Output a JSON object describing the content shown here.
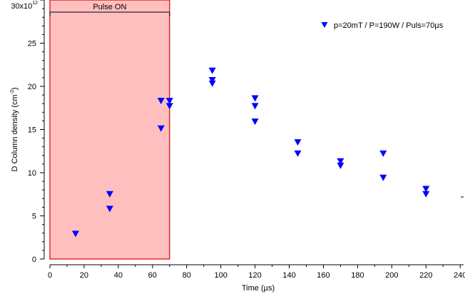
{
  "chart_data": {
    "type": "scatter",
    "xlabel": "Time (µs)",
    "ylabel": {
      "main": "D Column density (cm",
      "sup": "-2",
      "close": ")"
    },
    "xlim": [
      0,
      242
    ],
    "ylim": [
      0,
      30
    ],
    "y_multiplier": {
      "base": "30x10",
      "exp": "12"
    },
    "x_ticks": [
      0,
      20,
      40,
      60,
      80,
      100,
      120,
      140,
      160,
      180,
      200,
      220,
      240
    ],
    "y_ticks": [
      0,
      5,
      10,
      15,
      20,
      25
    ],
    "pulse_region": {
      "label": "Pulse ON",
      "x_start": 0,
      "x_end": 70,
      "color": "#ffbfbf",
      "edge_color": "#dd0000"
    },
    "marker_color": "#0000ff",
    "legend_position": "top-right",
    "series": [
      {
        "name": "p=20mT / P=190W / Puls=70µs",
        "points": [
          [
            15,
            2.9
          ],
          [
            35,
            7.5
          ],
          [
            35,
            5.8
          ],
          [
            65,
            18.3
          ],
          [
            65,
            15.1
          ],
          [
            70,
            18.3
          ],
          [
            70,
            17.7
          ],
          [
            95,
            21.8
          ],
          [
            95,
            20.7
          ],
          [
            95,
            20.3
          ],
          [
            120,
            18.6
          ],
          [
            120,
            17.7
          ],
          [
            120,
            15.9
          ],
          [
            145,
            13.5
          ],
          [
            145,
            12.2
          ],
          [
            170,
            11.3
          ],
          [
            170,
            10.8
          ],
          [
            195,
            12.2
          ],
          [
            195,
            9.4
          ],
          [
            220,
            8.1
          ],
          [
            220,
            7.5
          ]
        ]
      }
    ]
  }
}
